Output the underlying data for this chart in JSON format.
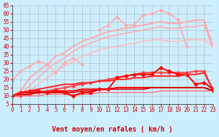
{
  "title": "",
  "xlabel": "Vent moyen/en rafales ( km/h )",
  "ylabel": "",
  "background_color": "#cceeff",
  "grid_color": "#aaaaaa",
  "xlim": [
    0,
    23
  ],
  "ylim": [
    5,
    65
  ],
  "yticks": [
    5,
    10,
    15,
    20,
    25,
    30,
    35,
    40,
    45,
    50,
    55,
    60,
    65
  ],
  "xticks": [
    0,
    1,
    2,
    3,
    4,
    5,
    6,
    7,
    8,
    9,
    10,
    11,
    12,
    13,
    14,
    15,
    16,
    17,
    18,
    19,
    20,
    21,
    22,
    23
  ],
  "x": [
    0,
    1,
    2,
    3,
    4,
    5,
    6,
    7,
    8,
    9,
    10,
    11,
    12,
    13,
    14,
    15,
    16,
    17,
    18,
    19,
    20,
    21,
    22,
    23
  ],
  "lines": [
    {
      "y": [
        19,
        25,
        28,
        31,
        29,
        24,
        30,
        33,
        29,
        null,
        50,
        53,
        58,
        53,
        53,
        59,
        60,
        62,
        60,
        56,
        40,
        null,
        null,
        null
      ],
      "color": "#ffaaaa",
      "lw": 1.2,
      "marker": "D",
      "ms": 2.5
    },
    {
      "y": [
        10,
        null,
        null,
        25,
        null,
        null,
        null,
        null,
        null,
        null,
        null,
        null,
        null,
        null,
        null,
        null,
        null,
        null,
        null,
        null,
        null,
        null,
        null,
        null
      ],
      "color": "#ffaaaa",
      "lw": 1.2,
      "marker": null,
      "ms": 0
    },
    {
      "y": [
        10,
        13,
        21,
        25,
        29,
        34,
        36,
        40,
        43,
        45,
        47,
        49,
        50,
        51,
        52,
        53,
        54,
        55,
        54,
        54,
        55,
        56,
        56,
        40
      ],
      "color": "#ffaaaa",
      "lw": 1.5,
      "marker": null,
      "ms": 0
    },
    {
      "y": [
        10,
        11,
        16,
        21,
        26,
        30,
        33,
        37,
        40,
        42,
        44,
        46,
        47,
        48,
        49,
        50,
        51,
        52,
        51,
        51,
        52,
        52,
        53,
        39
      ],
      "color": "#ffaaaa",
      "lw": 1.2,
      "marker": null,
      "ms": 0
    },
    {
      "y": [
        10,
        9,
        13,
        17,
        21,
        25,
        28,
        31,
        34,
        36,
        38,
        39,
        40,
        41,
        42,
        43,
        44,
        44,
        43,
        43,
        44,
        44,
        44,
        40
      ],
      "color": "#ffbbbb",
      "lw": 1.2,
      "marker": null,
      "ms": 0
    },
    {
      "y": [
        10,
        10,
        11,
        12,
        13,
        14,
        15,
        16,
        17,
        18,
        19,
        20,
        21,
        22,
        23,
        24,
        24,
        24,
        24,
        24,
        24,
        25,
        25,
        13
      ],
      "color": "#ff4444",
      "lw": 1.5,
      "marker": "D",
      "ms": 2.5
    },
    {
      "y": [
        10,
        12,
        12,
        12,
        12,
        13,
        13,
        13,
        14,
        14,
        14,
        14,
        15,
        15,
        15,
        15,
        15,
        15,
        15,
        15,
        15,
        15,
        15,
        13
      ],
      "color": "#ff0000",
      "lw": 1.5,
      "marker": null,
      "ms": 0
    },
    {
      "y": [
        10,
        11,
        11,
        12,
        12,
        12,
        12,
        12,
        13,
        13,
        14,
        14,
        14,
        14,
        14,
        14,
        15,
        15,
        15,
        15,
        15,
        15,
        15,
        13
      ],
      "color": "#cc0000",
      "lw": 1.2,
      "marker": null,
      "ms": 0
    },
    {
      "y": [
        10,
        10,
        10,
        10,
        11,
        11,
        11,
        10,
        11,
        11,
        12,
        12,
        12,
        12,
        12,
        12,
        12,
        13,
        13,
        13,
        13,
        13,
        13,
        13
      ],
      "color": "#ff6666",
      "lw": 1.0,
      "marker": null,
      "ms": 0
    },
    {
      "y": [
        10,
        12,
        13,
        13,
        12,
        13,
        12,
        10,
        12,
        12,
        14,
        14,
        21,
        22,
        23,
        23,
        23,
        27,
        25,
        23,
        23,
        17,
        18,
        14
      ],
      "color": "#ff0000",
      "lw": 1.5,
      "marker": "D",
      "ms": 3,
      "dashed": false
    },
    {
      "y": [
        10,
        12,
        13,
        14,
        15,
        16,
        17,
        17,
        18,
        18,
        19,
        19,
        20,
        20,
        21,
        21,
        22,
        22,
        22,
        22,
        23,
        23,
        24,
        14
      ],
      "color": "#ff2222",
      "lw": 1.5,
      "marker": null,
      "ms": 0
    }
  ]
}
